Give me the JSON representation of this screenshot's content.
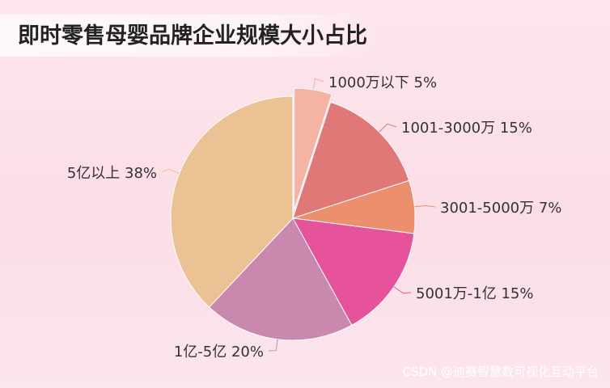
{
  "chart_data": {
    "type": "pie",
    "title": "即时零售母婴品牌企业规模大小占比",
    "slices": [
      {
        "label": "1000万以下",
        "percent_label": "5%",
        "value": 5,
        "color": "#f5b3a4",
        "exploded": true
      },
      {
        "label": "1001-3000万",
        "percent_label": "15%",
        "value": 15,
        "color": "#e07878"
      },
      {
        "label": "3001-5000万",
        "percent_label": "7%",
        "value": 7,
        "color": "#ec8f6c"
      },
      {
        "label": "5001万-1亿",
        "percent_label": "15%",
        "value": 15,
        "color": "#e6539a"
      },
      {
        "label": "1亿-5亿",
        "percent_label": "20%",
        "value": 20,
        "color": "#c988ad"
      },
      {
        "label": "5亿以上",
        "percent_label": "38%",
        "value": 38,
        "color": "#ebc293"
      }
    ],
    "legend": "none"
  },
  "watermark": "CSDN @迪赛智慧数可视化互动平台"
}
